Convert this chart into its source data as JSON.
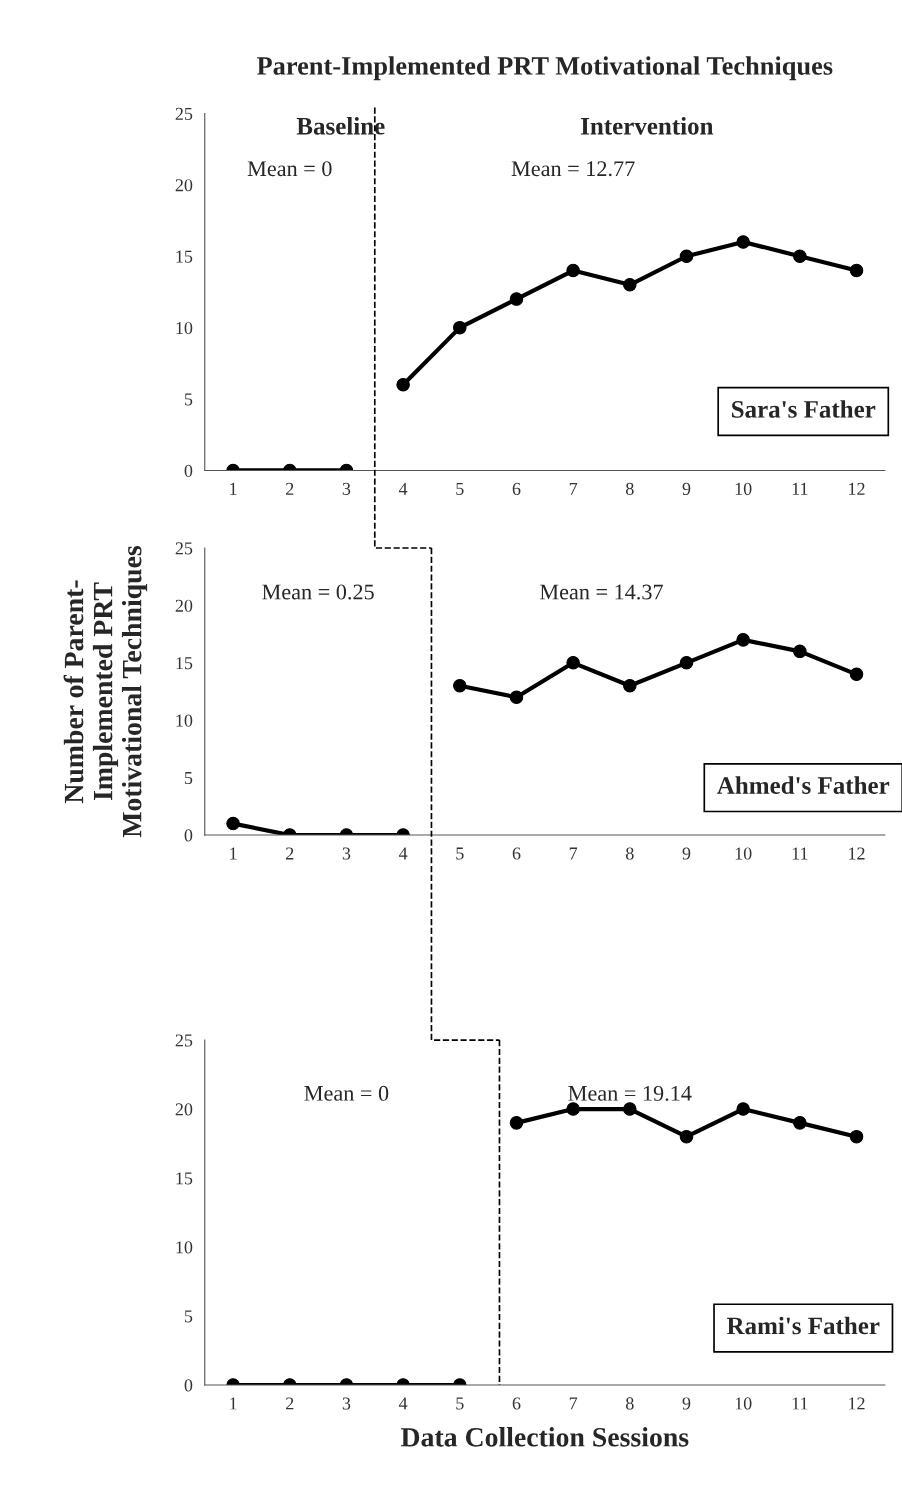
{
  "chart_data": [
    {
      "type": "line",
      "title": "Parent-Implemented PRT Motivational Techniques",
      "xlim": [
        0.5,
        12.5
      ],
      "xticks": [
        1,
        2,
        3,
        4,
        5,
        6,
        7,
        8,
        9,
        10,
        11,
        12
      ],
      "ylim": [
        0,
        25
      ],
      "yticks": [
        0,
        5,
        10,
        15,
        20,
        25
      ],
      "marker": "circle",
      "line_style": "solid",
      "series": [
        {
          "color": "#000000",
          "x": [
            1,
            2,
            3
          ],
          "values": [
            0,
            0,
            0
          ]
        },
        {
          "color": "#000000",
          "x": [
            4,
            5,
            6,
            7,
            8,
            9,
            10,
            11,
            12
          ],
          "values": [
            6,
            10,
            12,
            14,
            13,
            15,
            16,
            15,
            14
          ]
        }
      ],
      "ref_lines": [
        {
          "axis": "x",
          "value": 3.5,
          "line_style": "dashed",
          "color": "#000000"
        }
      ],
      "annotations": [
        "Baseline",
        "Intervention",
        "Mean = 0",
        "Mean = 12.77",
        "Sara's Father"
      ]
    },
    {
      "type": "line",
      "ylabel": "Number of Parent-\nImplemented PRT\nMotivational Techniques",
      "xlim": [
        0.5,
        12.5
      ],
      "xticks": [
        1,
        2,
        3,
        4,
        5,
        6,
        7,
        8,
        9,
        10,
        11,
        12
      ],
      "ylim": [
        0,
        25
      ],
      "yticks": [
        0,
        5,
        10,
        15,
        20,
        25
      ],
      "marker": "circle",
      "line_style": "solid",
      "series": [
        {
          "color": "#000000",
          "x": [
            1,
            2,
            3,
            4
          ],
          "values": [
            1,
            0,
            0,
            0
          ]
        },
        {
          "color": "#000000",
          "x": [
            5,
            6,
            7,
            8,
            9,
            10,
            11,
            12
          ],
          "values": [
            13,
            12,
            15,
            13,
            15,
            17,
            16,
            14
          ]
        }
      ],
      "ref_lines": [
        {
          "axis": "x",
          "value": 4.5,
          "line_style": "dashed",
          "color": "#000000"
        }
      ],
      "annotations": [
        "Mean = 0.25",
        "Mean = 14.37",
        "Ahmed's Father"
      ]
    },
    {
      "type": "line",
      "xlabel": "Data Collection Sessions",
      "xlim": [
        0.5,
        12.5
      ],
      "xticks": [
        1,
        2,
        3,
        4,
        5,
        6,
        7,
        8,
        9,
        10,
        11,
        12
      ],
      "ylim": [
        0,
        25
      ],
      "yticks": [
        0,
        5,
        10,
        15,
        20,
        25
      ],
      "marker": "circle",
      "line_style": "solid",
      "series": [
        {
          "color": "#000000",
          "x": [
            1,
            2,
            3,
            4,
            5
          ],
          "values": [
            0,
            0,
            0,
            0,
            0
          ]
        },
        {
          "color": "#000000",
          "x": [
            6,
            7,
            8,
            9,
            10,
            11,
            12
          ],
          "values": [
            19,
            20,
            20,
            18,
            20,
            19,
            18
          ]
        }
      ],
      "ref_lines": [
        {
          "axis": "x",
          "value": 5.7,
          "line_style": "dashed",
          "color": "#000000"
        }
      ],
      "annotations": [
        "Mean = 0",
        "Mean = 19.14",
        "Rami's Father"
      ]
    }
  ]
}
